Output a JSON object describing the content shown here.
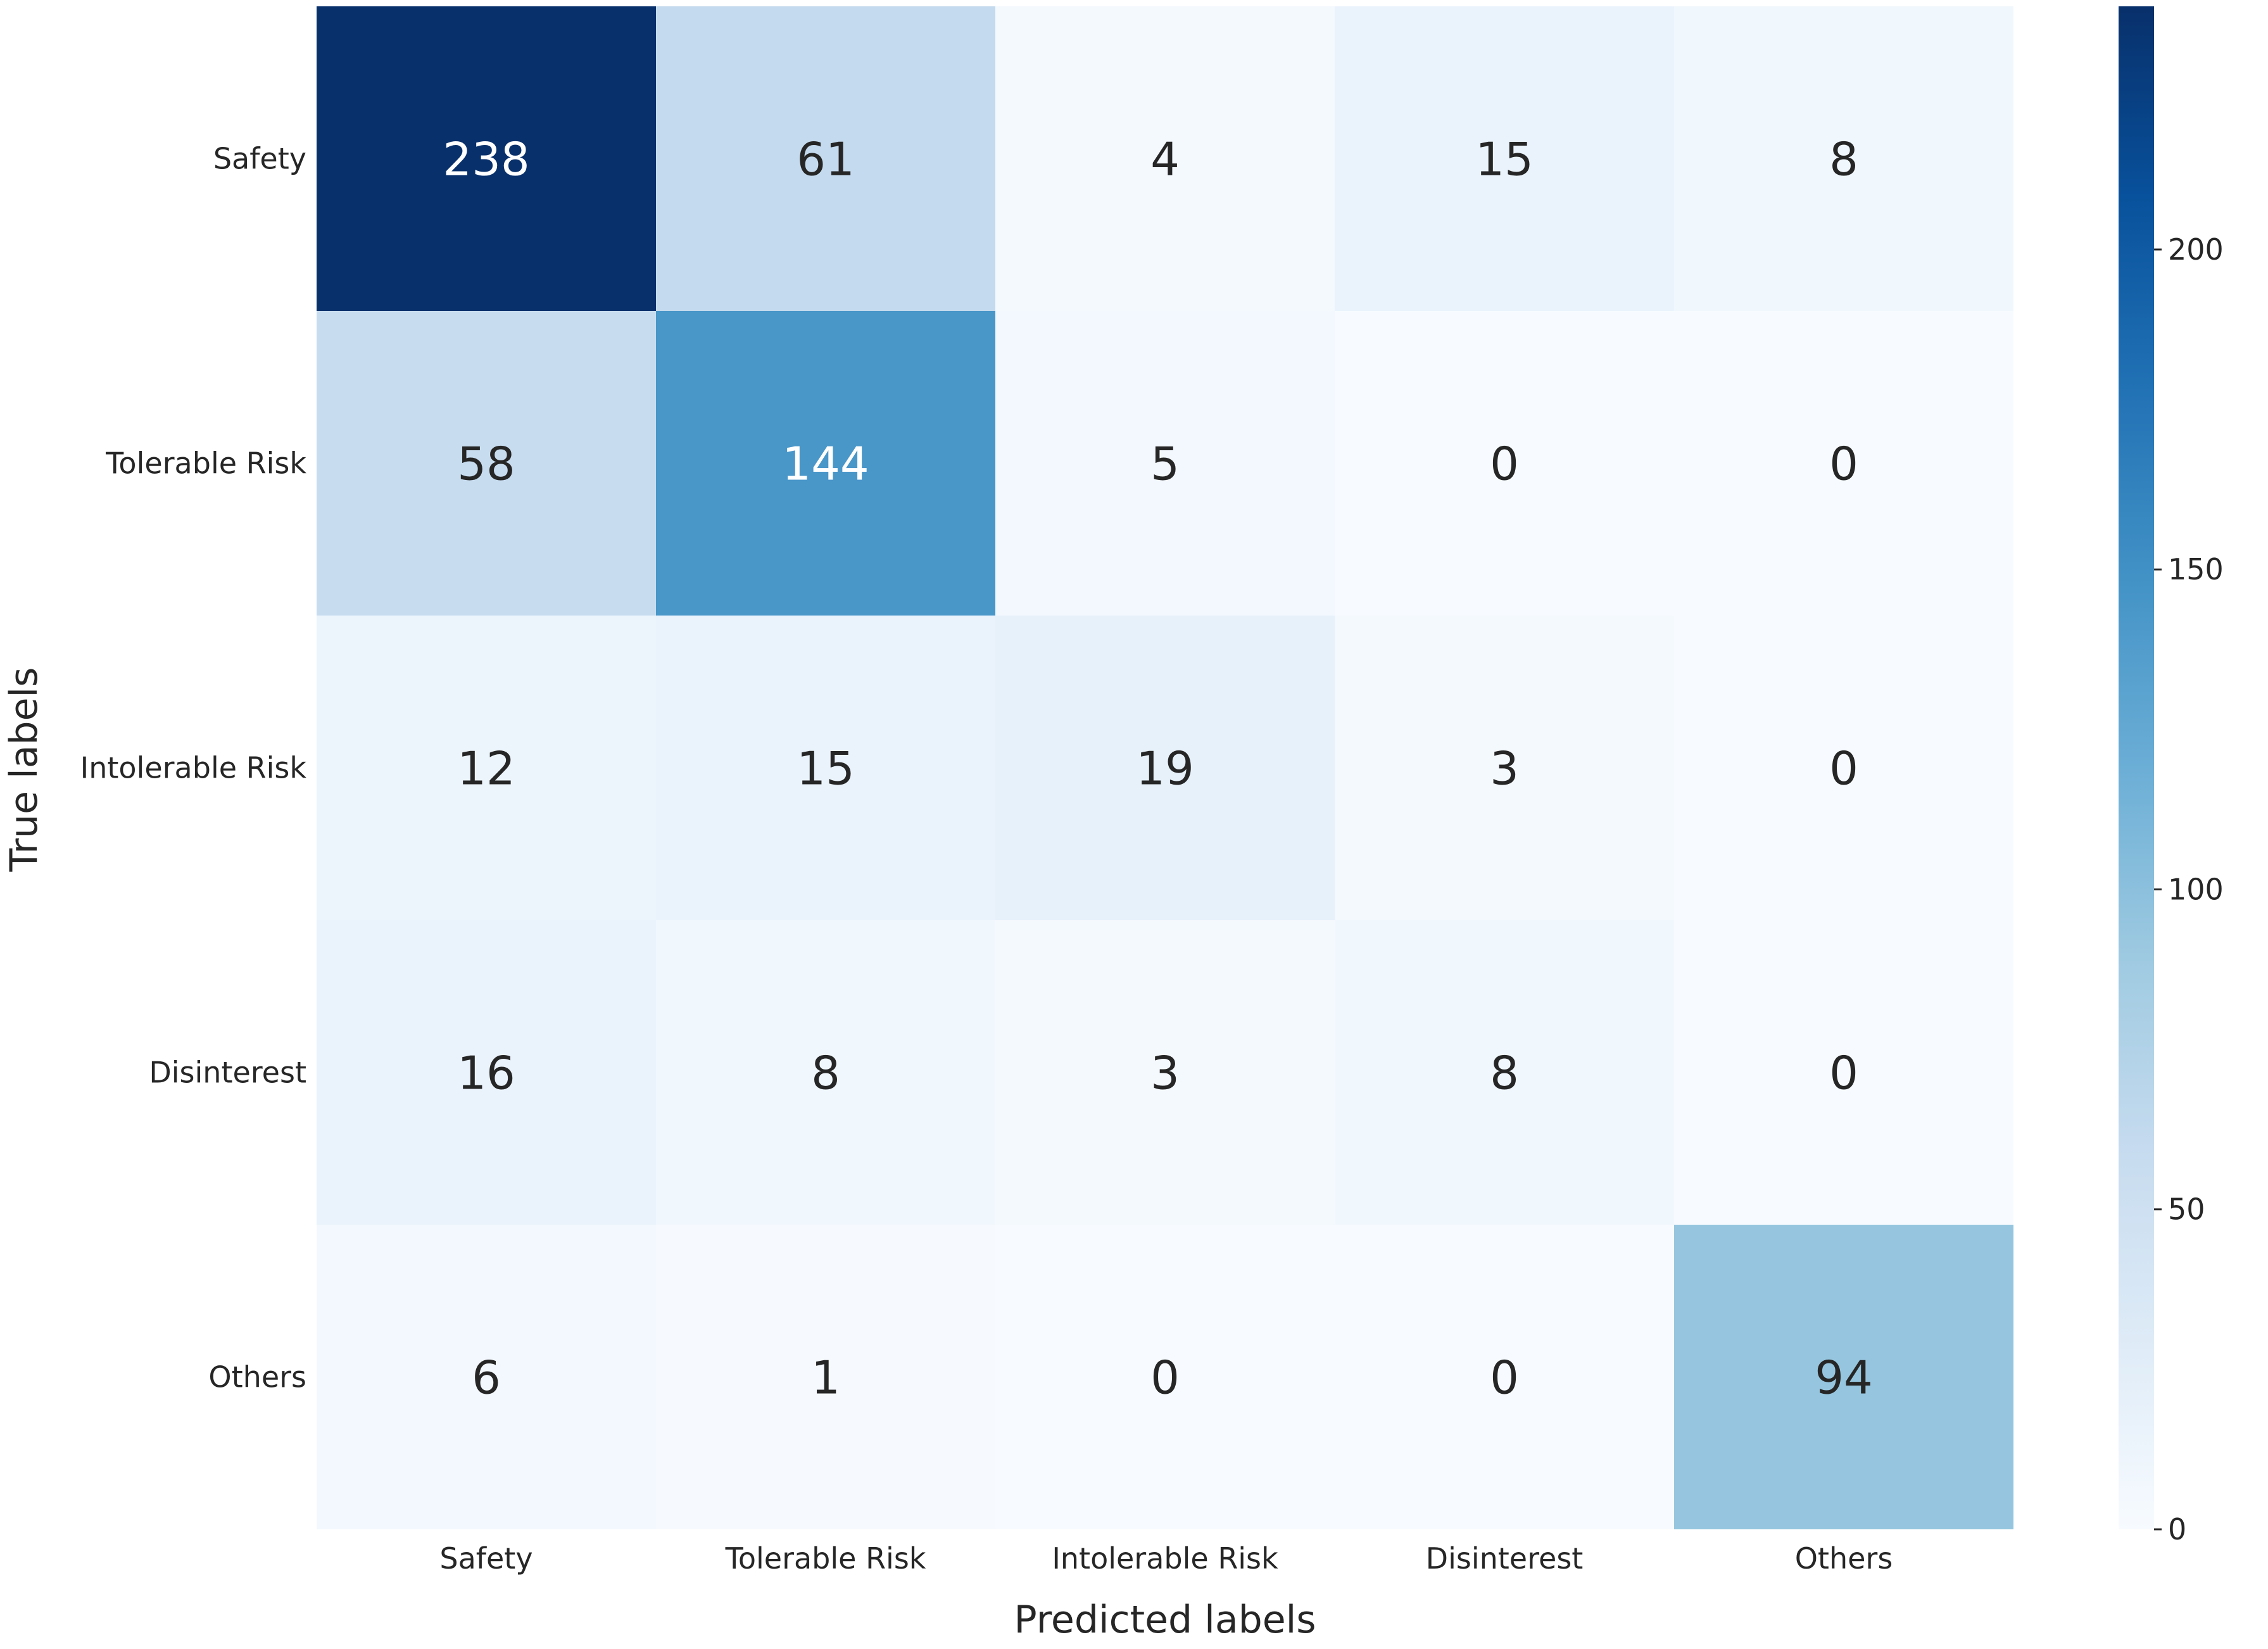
{
  "chart_data": {
    "type": "heatmap",
    "title": "",
    "xlabel": "Predicted labels",
    "ylabel": "True labels",
    "x_categories": [
      "Safety",
      "Tolerable Risk",
      "Intolerable Risk",
      "Disinterest",
      "Others"
    ],
    "y_categories": [
      "Safety",
      "Tolerable Risk",
      "Intolerable Risk",
      "Disinterest",
      "Others"
    ],
    "values": [
      [
        238,
        61,
        4,
        15,
        8
      ],
      [
        58,
        144,
        5,
        0,
        0
      ],
      [
        12,
        15,
        19,
        3,
        0
      ],
      [
        16,
        8,
        3,
        8,
        0
      ],
      [
        6,
        1,
        0,
        0,
        94
      ]
    ],
    "colormap": "Blues",
    "vmin": 0,
    "vmax": 238,
    "colorbar_ticks": [
      0,
      50,
      100,
      150,
      200
    ],
    "colorbar_location": "right"
  }
}
